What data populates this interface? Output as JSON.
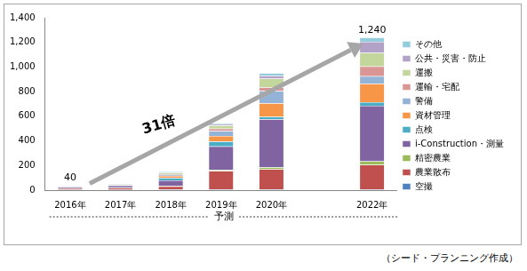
{
  "chart_data": {
    "type": "bar",
    "stacked": true,
    "grid": false,
    "legend": "right",
    "xlabel": "予測",
    "footer": "（シード・プランニング作成）",
    "categories": [
      "2016年",
      "2017年",
      "2018年",
      "2019年",
      "2020年",
      null,
      "2022年"
    ],
    "ylim": [
      0,
      1400
    ],
    "yticks": [
      0,
      200,
      400,
      600,
      800,
      1000,
      1200,
      1400
    ],
    "annotations": [
      {
        "text": "40",
        "category": "2016年",
        "value": 40
      },
      {
        "text": "1,240",
        "category": "2022年",
        "value": 1240
      },
      {
        "text": "31倍"
      }
    ],
    "series": [
      {
        "name": "空撮",
        "color": "#4f81bd",
        "values": [
          3,
          3,
          5,
          5,
          5,
          null,
          5
        ]
      },
      {
        "name": "農業散布",
        "color": "#c0504d",
        "values": [
          12,
          15,
          25,
          150,
          165,
          null,
          200
        ]
      },
      {
        "name": "精密農業",
        "color": "#9bbb59",
        "values": [
          2,
          3,
          5,
          10,
          15,
          null,
          30
        ]
      },
      {
        "name": "i-Construction・測量",
        "color": "#8064a2",
        "values": [
          10,
          15,
          45,
          190,
          390,
          null,
          450
        ]
      },
      {
        "name": "点検",
        "color": "#4bacc6",
        "values": [
          3,
          4,
          20,
          40,
          20,
          null,
          30
        ]
      },
      {
        "name": "資材管理",
        "color": "#f79646",
        "values": [
          2,
          3,
          15,
          45,
          110,
          null,
          150
        ]
      },
      {
        "name": "警備",
        "color": "#95b3d7",
        "values": [
          2,
          3,
          10,
          40,
          100,
          null,
          60
        ]
      },
      {
        "name": "運輸・宅配",
        "color": "#da9694",
        "values": [
          2,
          3,
          5,
          20,
          30,
          null,
          80
        ]
      },
      {
        "name": "運搬",
        "color": "#c3d69b",
        "values": [
          2,
          3,
          10,
          25,
          70,
          null,
          110
        ]
      },
      {
        "name": "公共・災害・防止",
        "color": "#b3a2c7",
        "values": [
          1,
          2,
          5,
          10,
          25,
          null,
          90
        ]
      },
      {
        "name": "その他",
        "color": "#93cddd",
        "values": [
          1,
          1,
          5,
          10,
          20,
          null,
          35
        ]
      }
    ]
  }
}
